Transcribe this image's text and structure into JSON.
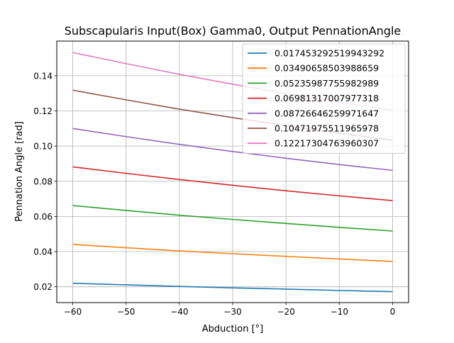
{
  "chart_data": {
    "type": "line",
    "title": "Subscapularis Input(Box) Gamma0, Output PennationAngle",
    "xlabel": "Abduction [°]",
    "ylabel": "Pennation Angle [rad]",
    "xlim": [
      -63,
      3
    ],
    "ylim": [
      0.011,
      0.1597
    ],
    "xticks": [
      -60,
      -50,
      -40,
      -30,
      -20,
      -10,
      0
    ],
    "xtick_labels": [
      "−60",
      "−50",
      "−40",
      "−30",
      "−20",
      "−10",
      "0"
    ],
    "yticks": [
      0.02,
      0.04,
      0.06,
      0.08,
      0.1,
      0.12,
      0.14
    ],
    "ytick_labels": [
      "0.02",
      "0.04",
      "0.06",
      "0.08",
      "0.10",
      "0.12",
      "0.14"
    ],
    "grid": true,
    "legend_position": "top-right",
    "x": [
      -60,
      -50,
      -40,
      -30,
      -20,
      -10,
      0
    ],
    "series": [
      {
        "name": "0.017453292519943292",
        "color": "#1f77b4",
        "values": [
          0.022,
          0.0211,
          0.0202,
          0.0194,
          0.0187,
          0.0179,
          0.0172
        ]
      },
      {
        "name": "0.03490658503988659",
        "color": "#ff7f0e",
        "values": [
          0.0441,
          0.0422,
          0.0404,
          0.0388,
          0.0373,
          0.0358,
          0.0344
        ]
      },
      {
        "name": "0.05235987755982989",
        "color": "#2ca02c",
        "values": [
          0.0662,
          0.0634,
          0.0607,
          0.0583,
          0.056,
          0.0538,
          0.0517
        ]
      },
      {
        "name": "0.06981317007977318",
        "color": "#d62728",
        "values": [
          0.0882,
          0.0845,
          0.081,
          0.0777,
          0.0746,
          0.0717,
          0.069
        ]
      },
      {
        "name": "0.08726646259971647",
        "color": "#9467bd",
        "values": [
          0.11,
          0.1054,
          0.101,
          0.0969,
          0.0931,
          0.0895,
          0.0862
        ]
      },
      {
        "name": "0.10471975511965978",
        "color": "#8c564b",
        "values": [
          0.1318,
          0.1263,
          0.121,
          0.1162,
          0.1116,
          0.1073,
          0.1033
        ]
      },
      {
        "name": "0.12217304763960307",
        "color": "#e377c2",
        "values": [
          0.1532,
          0.1469,
          0.1408,
          0.1352,
          0.1299,
          0.125,
          0.1204
        ]
      }
    ]
  }
}
